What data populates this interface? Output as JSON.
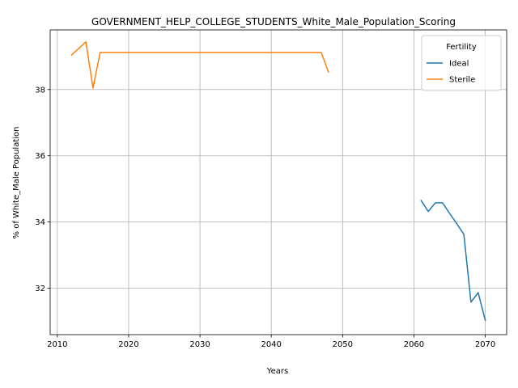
{
  "chart_data": {
    "type": "line",
    "title": "GOVERNMENT_HELP_COLLEGE_STUDENTS_White_Male_Population_Scoring",
    "xlabel": "Years",
    "ylabel": "% of White_Male Population",
    "xlim": [
      2009,
      2073
    ],
    "ylim": [
      30.6,
      39.8
    ],
    "x_ticks": [
      2010,
      2020,
      2030,
      2040,
      2050,
      2060,
      2070
    ],
    "y_ticks": [
      32,
      34,
      36,
      38
    ],
    "grid": true,
    "legend": {
      "title": "Fertility",
      "placement": "top-right",
      "entries": [
        "Ideal",
        "Sterile"
      ]
    },
    "series": [
      {
        "name": "Ideal",
        "color": "#1f77b4",
        "x": [
          2061,
          2062,
          2063,
          2064,
          2065,
          2066,
          2067,
          2068,
          2069,
          2070
        ],
        "y": [
          34.65,
          34.32,
          34.58,
          34.58,
          34.26,
          33.95,
          33.63,
          31.58,
          31.87,
          31.03
        ]
      },
      {
        "name": "Sterile",
        "color": "#ff7f0e",
        "x": [
          2012,
          2013,
          2014,
          2015,
          2016,
          2017,
          2020,
          2025,
          2030,
          2035,
          2040,
          2045,
          2047,
          2048
        ],
        "y": [
          39.04,
          39.24,
          39.44,
          38.05,
          39.12,
          39.12,
          39.12,
          39.12,
          39.12,
          39.12,
          39.12,
          39.12,
          39.12,
          38.53
        ]
      }
    ]
  }
}
